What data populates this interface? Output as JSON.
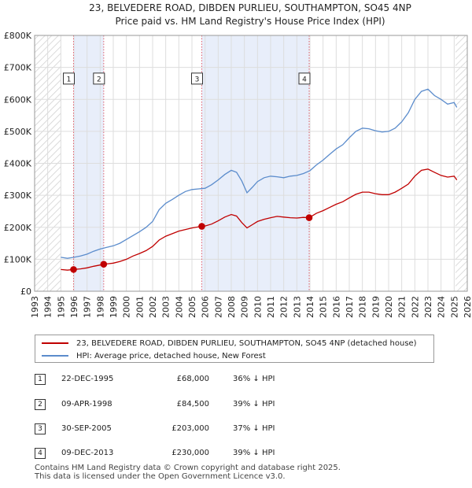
{
  "chart_data": {
    "type": "line",
    "title": "23, BELVEDERE ROAD, DIBDEN PURLIEU, SOUTHAMPTON, SO45 4NP",
    "subtitle": "Price paid vs. HM Land Registry's House Price Index (HPI)",
    "xlim": [
      1993,
      2026
    ],
    "ylim": [
      0,
      800000
    ],
    "y_ticks": [
      {
        "value": 0,
        "label": "£0"
      },
      {
        "value": 100000,
        "label": "£100K"
      },
      {
        "value": 200000,
        "label": "£200K"
      },
      {
        "value": 300000,
        "label": "£300K"
      },
      {
        "value": 400000,
        "label": "£400K"
      },
      {
        "value": 500000,
        "label": "£500K"
      },
      {
        "value": 600000,
        "label": "£600K"
      },
      {
        "value": 700000,
        "label": "£700K"
      },
      {
        "value": 800000,
        "label": "£800K"
      }
    ],
    "x_ticks": [
      {
        "value": 1993,
        "label": "1993"
      },
      {
        "value": 1994,
        "label": "1994"
      },
      {
        "value": 1995,
        "label": "1995"
      },
      {
        "value": 1996,
        "label": "1996"
      },
      {
        "value": 1997,
        "label": "1997"
      },
      {
        "value": 1998,
        "label": "1998"
      },
      {
        "value": 1999,
        "label": "1999"
      },
      {
        "value": 2000,
        "label": "2000"
      },
      {
        "value": 2001,
        "label": "2001"
      },
      {
        "value": 2002,
        "label": "2002"
      },
      {
        "value": 2003,
        "label": "2003"
      },
      {
        "value": 2004,
        "label": "2004"
      },
      {
        "value": 2005,
        "label": "2005"
      },
      {
        "value": 2006,
        "label": "2006"
      },
      {
        "value": 2007,
        "label": "2007"
      },
      {
        "value": 2008,
        "label": "2008"
      },
      {
        "value": 2009,
        "label": "2009"
      },
      {
        "value": 2010,
        "label": "2010"
      },
      {
        "value": 2011,
        "label": "2011"
      },
      {
        "value": 2012,
        "label": "2012"
      },
      {
        "value": 2013,
        "label": "2013"
      },
      {
        "value": 2014,
        "label": "2014"
      },
      {
        "value": 2015,
        "label": "2015"
      },
      {
        "value": 2016,
        "label": "2016"
      },
      {
        "value": 2017,
        "label": "2017"
      },
      {
        "value": 2018,
        "label": "2018"
      },
      {
        "value": 2019,
        "label": "2019"
      },
      {
        "value": 2020,
        "label": "2020"
      },
      {
        "value": 2021,
        "label": "2021"
      },
      {
        "value": 2022,
        "label": "2022"
      },
      {
        "value": 2023,
        "label": "2023"
      },
      {
        "value": 2024,
        "label": "2024"
      },
      {
        "value": 2025,
        "label": "2025"
      },
      {
        "value": 2026,
        "label": "2026"
      }
    ],
    "grid": true,
    "hatched_ranges": [
      [
        1993,
        1995.0
      ],
      [
        2025.1,
        2026
      ]
    ],
    "shaded_ranges": [
      [
        1995.97,
        1998.27
      ],
      [
        2005.75,
        2013.94
      ]
    ],
    "series": [
      {
        "name": "23, BELVEDERE ROAD, DIBDEN PURLIEU, SOUTHAMPTON, SO45 4NP (detached house)",
        "color": "#c00000",
        "points": [
          [
            1995.0,
            68000
          ],
          [
            1995.5,
            66000
          ],
          [
            1995.97,
            68000
          ],
          [
            1996.5,
            70000
          ],
          [
            1997.0,
            73000
          ],
          [
            1997.5,
            78000
          ],
          [
            1998.0,
            82000
          ],
          [
            1998.27,
            84500
          ],
          [
            1998.6,
            86000
          ],
          [
            1999.0,
            88000
          ],
          [
            1999.5,
            93000
          ],
          [
            2000.0,
            100000
          ],
          [
            2000.5,
            110000
          ],
          [
            2001.0,
            118000
          ],
          [
            2001.5,
            127000
          ],
          [
            2002.0,
            140000
          ],
          [
            2002.5,
            160000
          ],
          [
            2003.0,
            172000
          ],
          [
            2003.5,
            180000
          ],
          [
            2004.0,
            188000
          ],
          [
            2004.5,
            193000
          ],
          [
            2005.0,
            198000
          ],
          [
            2005.75,
            203000
          ],
          [
            2006.0,
            204000
          ],
          [
            2006.5,
            210000
          ],
          [
            2007.0,
            220000
          ],
          [
            2007.5,
            232000
          ],
          [
            2008.0,
            240000
          ],
          [
            2008.4,
            235000
          ],
          [
            2008.8,
            215000
          ],
          [
            2009.2,
            198000
          ],
          [
            2009.6,
            208000
          ],
          [
            2010.0,
            218000
          ],
          [
            2010.5,
            225000
          ],
          [
            2011.0,
            230000
          ],
          [
            2011.5,
            234000
          ],
          [
            2012.0,
            232000
          ],
          [
            2012.5,
            230000
          ],
          [
            2013.0,
            229000
          ],
          [
            2013.5,
            231000
          ],
          [
            2013.94,
            230000
          ],
          [
            2014.5,
            244000
          ],
          [
            2015.0,
            252000
          ],
          [
            2015.5,
            262000
          ],
          [
            2016.0,
            272000
          ],
          [
            2016.5,
            280000
          ],
          [
            2017.0,
            292000
          ],
          [
            2017.5,
            303000
          ],
          [
            2018.0,
            310000
          ],
          [
            2018.5,
            310000
          ],
          [
            2019.0,
            305000
          ],
          [
            2019.5,
            302000
          ],
          [
            2020.0,
            302000
          ],
          [
            2020.5,
            310000
          ],
          [
            2021.0,
            322000
          ],
          [
            2021.5,
            335000
          ],
          [
            2022.0,
            360000
          ],
          [
            2022.5,
            378000
          ],
          [
            2023.0,
            382000
          ],
          [
            2023.5,
            372000
          ],
          [
            2024.0,
            362000
          ],
          [
            2024.5,
            357000
          ],
          [
            2025.0,
            360000
          ],
          [
            2025.2,
            348000
          ]
        ]
      },
      {
        "name": "HPI: Average price, detached house, New Forest",
        "color": "#5b8ccc",
        "points": [
          [
            1995.0,
            106000
          ],
          [
            1995.5,
            103000
          ],
          [
            1996.0,
            106000
          ],
          [
            1996.5,
            110000
          ],
          [
            1997.0,
            116000
          ],
          [
            1997.5,
            125000
          ],
          [
            1998.0,
            132000
          ],
          [
            1998.5,
            137000
          ],
          [
            1999.0,
            142000
          ],
          [
            1999.5,
            150000
          ],
          [
            2000.0,
            162000
          ],
          [
            2000.5,
            174000
          ],
          [
            2001.0,
            186000
          ],
          [
            2001.5,
            200000
          ],
          [
            2002.0,
            218000
          ],
          [
            2002.5,
            255000
          ],
          [
            2003.0,
            275000
          ],
          [
            2003.5,
            287000
          ],
          [
            2004.0,
            300000
          ],
          [
            2004.5,
            312000
          ],
          [
            2005.0,
            318000
          ],
          [
            2005.5,
            320000
          ],
          [
            2006.0,
            322000
          ],
          [
            2006.5,
            333000
          ],
          [
            2007.0,
            348000
          ],
          [
            2007.5,
            365000
          ],
          [
            2008.0,
            378000
          ],
          [
            2008.4,
            372000
          ],
          [
            2008.8,
            345000
          ],
          [
            2009.2,
            308000
          ],
          [
            2009.6,
            325000
          ],
          [
            2010.0,
            343000
          ],
          [
            2010.5,
            355000
          ],
          [
            2011.0,
            360000
          ],
          [
            2011.5,
            358000
          ],
          [
            2012.0,
            355000
          ],
          [
            2012.5,
            360000
          ],
          [
            2013.0,
            362000
          ],
          [
            2013.5,
            368000
          ],
          [
            2014.0,
            377000
          ],
          [
            2014.5,
            395000
          ],
          [
            2015.0,
            410000
          ],
          [
            2015.5,
            428000
          ],
          [
            2016.0,
            445000
          ],
          [
            2016.5,
            458000
          ],
          [
            2017.0,
            480000
          ],
          [
            2017.5,
            500000
          ],
          [
            2018.0,
            510000
          ],
          [
            2018.5,
            508000
          ],
          [
            2019.0,
            502000
          ],
          [
            2019.5,
            498000
          ],
          [
            2020.0,
            500000
          ],
          [
            2020.5,
            510000
          ],
          [
            2021.0,
            530000
          ],
          [
            2021.5,
            558000
          ],
          [
            2022.0,
            600000
          ],
          [
            2022.5,
            625000
          ],
          [
            2023.0,
            632000
          ],
          [
            2023.5,
            612000
          ],
          [
            2024.0,
            600000
          ],
          [
            2024.5,
            585000
          ],
          [
            2025.0,
            590000
          ],
          [
            2025.2,
            575000
          ]
        ]
      }
    ],
    "sales": [
      {
        "num": "1",
        "x": 1995.97,
        "price": 68000
      },
      {
        "num": "2",
        "x": 1998.27,
        "price": 84500
      },
      {
        "num": "3",
        "x": 2005.75,
        "price": 203000
      },
      {
        "num": "4",
        "x": 2013.94,
        "price": 230000
      }
    ],
    "sale_label_level": 665000
  },
  "legend": {
    "items": [
      {
        "label": "23, BELVEDERE ROAD, DIBDEN PURLIEU, SOUTHAMPTON, SO45 4NP (detached house)",
        "color": "#c00000"
      },
      {
        "label": "HPI: Average price, detached house, New Forest",
        "color": "#5b8ccc"
      }
    ]
  },
  "table": {
    "rows": [
      {
        "num": "1",
        "date": "22-DEC-1995",
        "price": "£68,000",
        "hpi": "36% ↓ HPI"
      },
      {
        "num": "2",
        "date": "09-APR-1998",
        "price": "£84,500",
        "hpi": "39% ↓ HPI"
      },
      {
        "num": "3",
        "date": "30-SEP-2005",
        "price": "£203,000",
        "hpi": "37% ↓ HPI"
      },
      {
        "num": "4",
        "date": "09-DEC-2013",
        "price": "£230,000",
        "hpi": "39% ↓ HPI"
      }
    ]
  },
  "footer": {
    "line1": "Contains HM Land Registry data © Crown copyright and database right 2025.",
    "line2": "This data is licensed under the Open Government Licence v3.0."
  }
}
